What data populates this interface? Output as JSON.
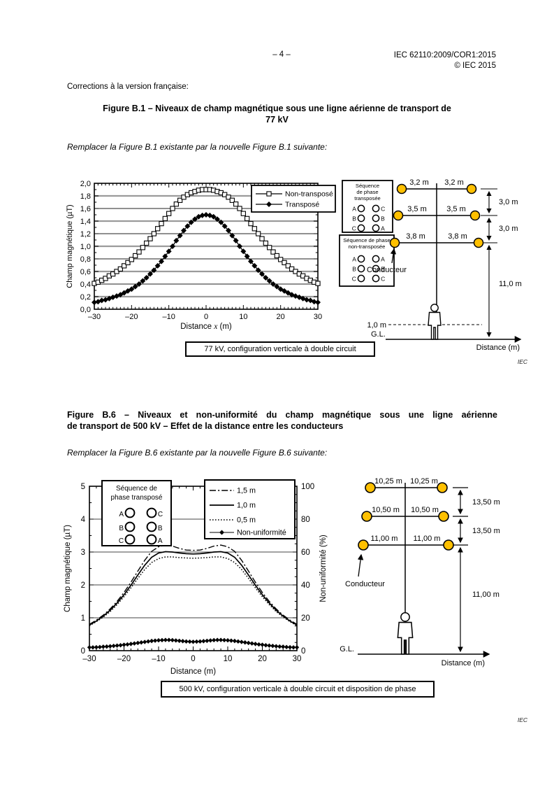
{
  "colors": {
    "conductor_fill": "#FFC000",
    "grid_gray": "#9b9b9b",
    "ink": "#000000"
  },
  "page": {
    "number": "– 4 –",
    "doc_ref": "IEC 62110:2009/COR1:2015",
    "copyright": "© IEC 2015",
    "intro": "Corrections à la version française:",
    "iec_mark": "IEC"
  },
  "figure_b1": {
    "heading_lines": [
      "Figure B.1 – Niveaux de champ magnétique sous une ligne aérienne de transport de",
      "77 kV"
    ],
    "instruction": "Remplacer la Figure B.1 existante par la nouvelle Figure B.1 suivante:",
    "caption_box": "77 kV, configuration verticale à double circuit",
    "phase_boxes": [
      {
        "title_lines": [
          "Séquence",
          "de phase",
          "transposée"
        ],
        "rows": [
          [
            "A",
            "C"
          ],
          [
            "B",
            "B"
          ],
          [
            "C",
            "A"
          ]
        ]
      },
      {
        "title_lines": [
          "Séquence de phase",
          "non-transposée"
        ],
        "rows": [
          [
            "A",
            "A"
          ],
          [
            "B",
            "B"
          ],
          [
            "C",
            "C"
          ]
        ]
      }
    ],
    "tower": {
      "arm_labels": [
        [
          "3,2 m",
          "3,2 m"
        ],
        [
          "3,5 m",
          "3,5 m"
        ],
        [
          "3,8 m",
          "3,8 m"
        ]
      ],
      "spacing_labels": [
        "3,0 m",
        "3,0 m"
      ],
      "height_label": "11,0 m",
      "conductor_label": "Conducteur",
      "measure_height_label": "1,0 m",
      "ground_label": "G.L.",
      "axis_label": "Distance (m)"
    }
  },
  "figure_b6": {
    "heading_lines": [
      "Figure B.6 – Niveaux et non-uniformité du champ magnétique sous une ligne aérienne",
      "de transport de 500 kV – Effet de la distance entre les conducteurs"
    ],
    "instruction": "Remplacer la Figure B.6 existante par la nouvelle Figure B.6 suivante:",
    "caption_box": "500 kV, configuration verticale à double circuit et disposition de phase",
    "phase_box": {
      "title_lines": [
        "Séquence de",
        "phase transposé"
      ],
      "rows": [
        [
          "A",
          "C"
        ],
        [
          "B",
          "B"
        ],
        [
          "C",
          "A"
        ]
      ]
    },
    "tower": {
      "arm_labels": [
        [
          "10,25 m",
          "10,25 m"
        ],
        [
          "10,50 m",
          "10,50 m"
        ],
        [
          "11,00 m",
          "11,00 m"
        ]
      ],
      "spacing_labels": [
        "13,50 m",
        "13,50 m"
      ],
      "height_label": "11,00 m",
      "conductor_label": "Conducteur",
      "ground_label": "G.L.",
      "axis_label": "Distance (m)"
    }
  },
  "chart_data": [
    {
      "type": "line",
      "title": "",
      "xlabel": "Distance x (m)",
      "ylabel": "Champ magnétique (µT)",
      "xlim": [
        -30,
        30
      ],
      "ylim": [
        0,
        2
      ],
      "x_ticks": [
        -30,
        -20,
        -10,
        0,
        10,
        20,
        30
      ],
      "x_tick_labels": [
        "–30",
        "–20",
        "–10",
        "0",
        "10",
        "20",
        "30"
      ],
      "y_ticks": [
        0,
        0.2,
        0.4,
        0.6,
        0.8,
        1,
        1.2,
        1.4,
        1.6,
        1.8,
        2
      ],
      "y_tick_labels": [
        "0,0",
        "0,2",
        "0,4",
        "0,6",
        "0,8",
        "1,0",
        "1,2",
        "1,4",
        "1,6",
        "1,8",
        "2,0"
      ],
      "x_minor_step": 1,
      "grid_thick": [
        0.2,
        0.6,
        1,
        1.4,
        1.8
      ],
      "grid_thin": [
        0.4,
        0.8,
        1.2,
        1.6
      ],
      "legend_position": "top-right",
      "series": [
        {
          "name": "Non-transposé",
          "marker": "square-open",
          "x_start": -30,
          "x_step": 1,
          "values": [
            0.41,
            0.43,
            0.46,
            0.49,
            0.53,
            0.56,
            0.6,
            0.64,
            0.69,
            0.74,
            0.79,
            0.85,
            0.91,
            0.98,
            1.05,
            1.12,
            1.2,
            1.28,
            1.36,
            1.44,
            1.52,
            1.6,
            1.67,
            1.73,
            1.78,
            1.82,
            1.85,
            1.87,
            1.89,
            1.9,
            1.9,
            1.9,
            1.89,
            1.87,
            1.85,
            1.82,
            1.78,
            1.73,
            1.67,
            1.6,
            1.52,
            1.44,
            1.36,
            1.28,
            1.2,
            1.12,
            1.05,
            0.98,
            0.91,
            0.85,
            0.79,
            0.74,
            0.69,
            0.64,
            0.6,
            0.56,
            0.53,
            0.49,
            0.46,
            0.43,
            0.41
          ]
        },
        {
          "name": "Transposé",
          "marker": "diamond-filled",
          "x_start": -30,
          "x_step": 1,
          "values": [
            0.11,
            0.12,
            0.14,
            0.15,
            0.17,
            0.19,
            0.21,
            0.23,
            0.26,
            0.29,
            0.32,
            0.36,
            0.4,
            0.45,
            0.5,
            0.56,
            0.62,
            0.69,
            0.76,
            0.84,
            0.92,
            1.0,
            1.09,
            1.17,
            1.25,
            1.32,
            1.38,
            1.43,
            1.47,
            1.49,
            1.5,
            1.49,
            1.47,
            1.43,
            1.38,
            1.32,
            1.25,
            1.17,
            1.09,
            1.0,
            0.92,
            0.84,
            0.76,
            0.69,
            0.62,
            0.56,
            0.5,
            0.45,
            0.4,
            0.36,
            0.32,
            0.29,
            0.26,
            0.23,
            0.21,
            0.19,
            0.17,
            0.15,
            0.14,
            0.12,
            0.11
          ]
        }
      ]
    },
    {
      "type": "line",
      "title": "",
      "xlabel": "Distance (m)",
      "ylabel_left": "Champ magnétique (µT)",
      "ylabel_right": "Non-uniformité (%)",
      "xlim": [
        -30,
        30
      ],
      "ylim_left": [
        0,
        5
      ],
      "ylim_right": [
        0,
        100
      ],
      "x_ticks": [
        -30,
        -20,
        -10,
        0,
        10,
        20,
        30
      ],
      "x_tick_labels": [
        "–30",
        "–20",
        "–10",
        "0",
        "10",
        "20",
        "30"
      ],
      "y_ticks_left": [
        0,
        1,
        2,
        3,
        4,
        5
      ],
      "y_tick_labels_left": [
        "0",
        "1",
        "2",
        "3",
        "4",
        "5"
      ],
      "y_ticks_right": [
        0,
        20,
        40,
        60,
        80,
        100
      ],
      "y_tick_labels_right": [
        "0",
        "20",
        "40",
        "60",
        "80",
        "100"
      ],
      "x_minor_step": 2,
      "grid": [
        1,
        2,
        3,
        4
      ],
      "legend_position": "top-right",
      "series": [
        {
          "name": "1,5 m",
          "axis": "left",
          "line": "dashdot",
          "x_start": -30,
          "x_step": 2,
          "values": [
            0.8,
            0.93,
            1.08,
            1.27,
            1.5,
            1.77,
            2.08,
            2.42,
            2.75,
            3.02,
            3.16,
            3.21,
            3.18,
            3.11,
            3.06,
            3.05,
            3.06,
            3.11,
            3.18,
            3.21,
            3.16,
            3.02,
            2.75,
            2.42,
            2.08,
            1.77,
            1.5,
            1.27,
            1.08,
            0.93,
            0.8
          ]
        },
        {
          "name": "1,0 m",
          "axis": "left",
          "line": "solid",
          "x_start": -30,
          "x_step": 2,
          "values": [
            0.78,
            0.9,
            1.05,
            1.23,
            1.45,
            1.7,
            1.99,
            2.3,
            2.6,
            2.84,
            2.97,
            3.01,
            3.0,
            2.97,
            2.95,
            2.94,
            2.95,
            2.97,
            3.0,
            3.01,
            2.97,
            2.84,
            2.6,
            2.3,
            1.99,
            1.7,
            1.45,
            1.23,
            1.05,
            0.9,
            0.78
          ]
        },
        {
          "name": "0,5 m",
          "axis": "left",
          "line": "dotted",
          "x_start": -30,
          "x_step": 2,
          "values": [
            0.76,
            0.88,
            1.02,
            1.19,
            1.4,
            1.64,
            1.91,
            2.2,
            2.47,
            2.68,
            2.8,
            2.85,
            2.85,
            2.83,
            2.82,
            2.81,
            2.82,
            2.83,
            2.85,
            2.85,
            2.8,
            2.68,
            2.47,
            2.2,
            1.91,
            1.64,
            1.4,
            1.19,
            1.02,
            0.88,
            0.76
          ]
        },
        {
          "name": "Non-uniformité",
          "axis": "right",
          "line": "solid",
          "marker": "diamond-filled",
          "x_start": -30,
          "x_step": 1,
          "values": [
            2.0,
            2.0,
            2.1,
            2.2,
            2.4,
            2.5,
            2.7,
            2.9,
            3.1,
            3.3,
            3.6,
            3.8,
            4.1,
            4.4,
            4.7,
            5.0,
            5.3,
            5.6,
            5.9,
            6.1,
            6.3,
            6.4,
            6.5,
            6.5,
            6.4,
            6.2,
            6.0,
            5.8,
            5.6,
            5.5,
            5.4,
            5.5,
            5.6,
            5.8,
            6.0,
            6.2,
            6.4,
            6.5,
            6.5,
            6.4,
            6.3,
            6.1,
            5.9,
            5.6,
            5.3,
            5.0,
            4.7,
            4.4,
            4.1,
            3.8,
            3.6,
            3.3,
            3.1,
            2.9,
            2.7,
            2.5,
            2.4,
            2.2,
            2.1,
            2.0,
            2.0
          ]
        }
      ]
    }
  ]
}
